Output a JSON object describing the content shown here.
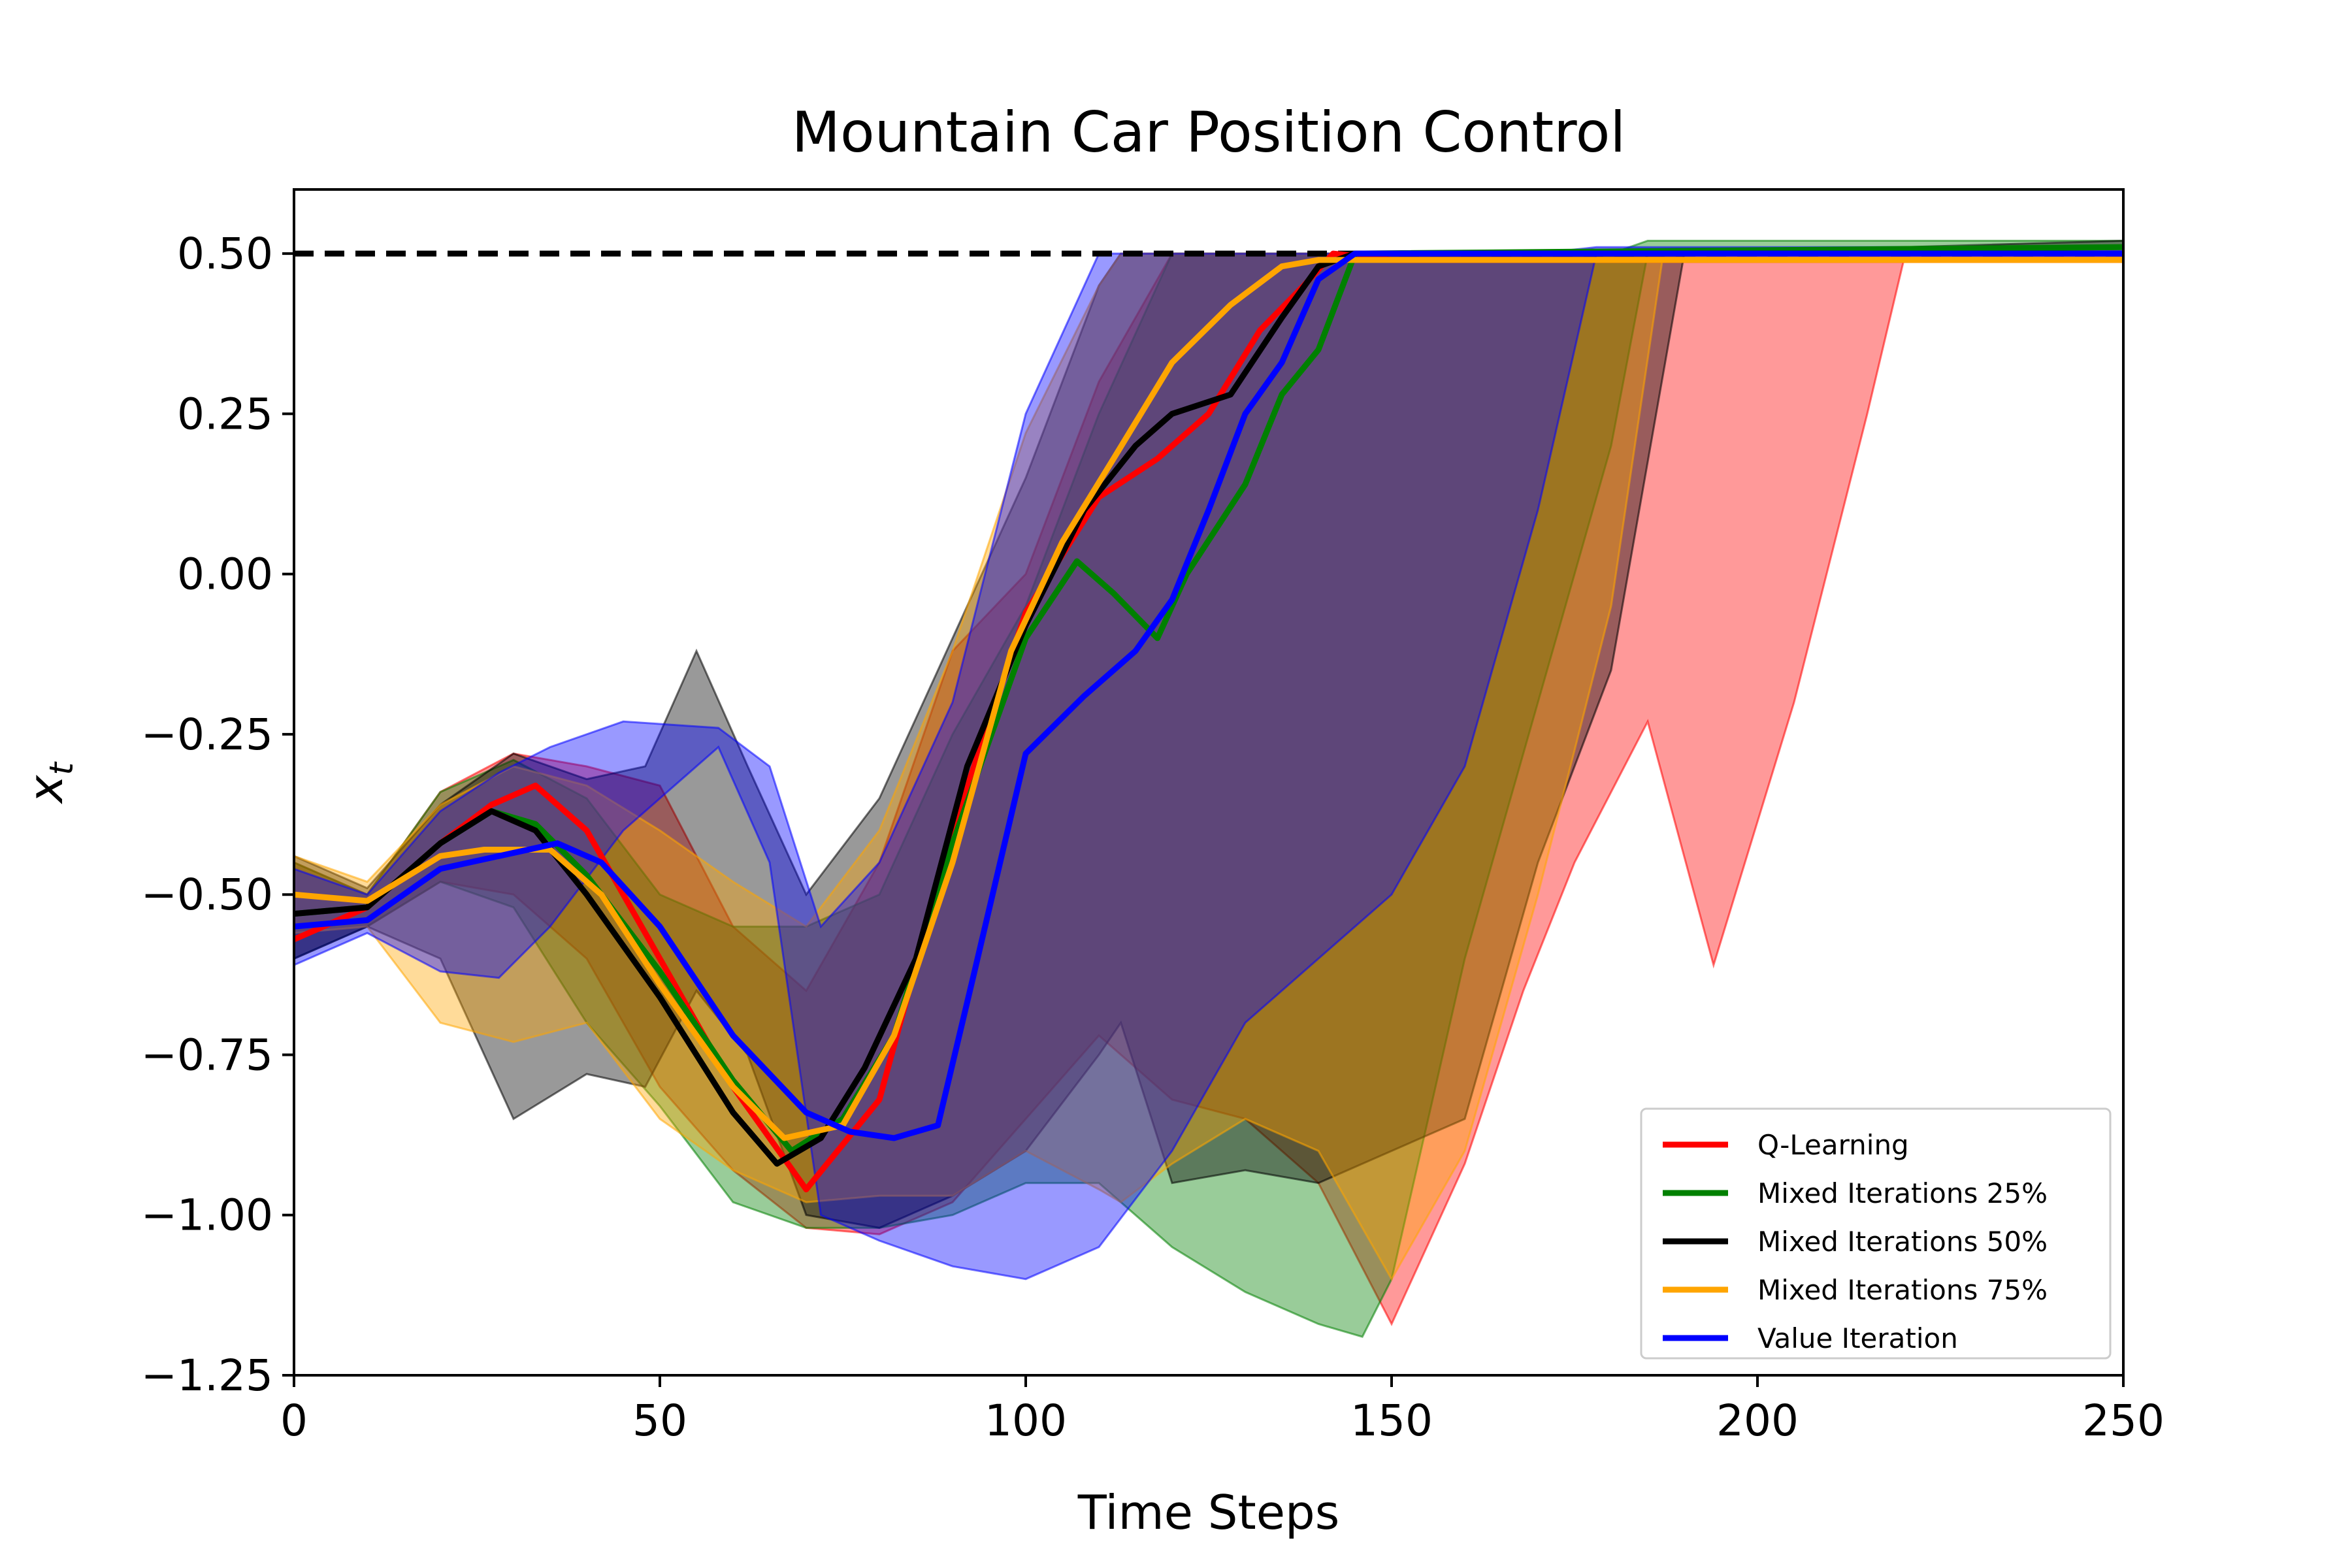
{
  "chart_data": {
    "type": "line",
    "title": "Mountain Car Position Control",
    "xlabel": "Time Steps",
    "ylabel": "x_t",
    "xlim": [
      0,
      250
    ],
    "ylim": [
      -1.25,
      0.6
    ],
    "x_ticks": [
      0,
      50,
      100,
      150,
      200,
      250
    ],
    "x_tick_labels": [
      "0",
      "50",
      "100",
      "150",
      "200",
      "250"
    ],
    "y_ticks": [
      -1.25,
      -1.0,
      -0.75,
      -0.5,
      -0.25,
      0.0,
      0.25,
      0.5
    ],
    "y_tick_labels": [
      "−1.25",
      "−1.00",
      "−0.75",
      "−0.50",
      "−0.25",
      "0.00",
      "0.25",
      "0.50"
    ],
    "goal_line": 0.5,
    "grid": false,
    "legend_placement": "lower-right",
    "series": [
      {
        "name": "Q-Learning",
        "color": "#ff0000",
        "mean": [
          [
            0,
            -0.57
          ],
          [
            10,
            -0.52
          ],
          [
            20,
            -0.42
          ],
          [
            27,
            -0.36
          ],
          [
            33,
            -0.33
          ],
          [
            40,
            -0.4
          ],
          [
            50,
            -0.6
          ],
          [
            60,
            -0.8
          ],
          [
            70,
            -0.96
          ],
          [
            80,
            -0.82
          ],
          [
            90,
            -0.4
          ],
          [
            100,
            -0.06
          ],
          [
            110,
            0.12
          ],
          [
            118,
            0.18
          ],
          [
            125,
            0.25
          ],
          [
            132,
            0.38
          ],
          [
            138,
            0.45
          ],
          [
            142,
            0.5
          ],
          [
            150,
            0.49
          ],
          [
            250,
            0.49
          ]
        ],
        "band": [
          [
            0,
            -0.6,
            -0.45
          ],
          [
            10,
            -0.55,
            -0.5
          ],
          [
            20,
            -0.48,
            -0.34
          ],
          [
            30,
            -0.5,
            -0.28
          ],
          [
            40,
            -0.6,
            -0.3
          ],
          [
            50,
            -0.8,
            -0.33
          ],
          [
            60,
            -0.93,
            -0.55
          ],
          [
            70,
            -1.02,
            -0.65
          ],
          [
            80,
            -1.03,
            -0.45
          ],
          [
            90,
            -0.98,
            -0.12
          ],
          [
            100,
            -0.85,
            0.0
          ],
          [
            110,
            -0.72,
            0.3
          ],
          [
            120,
            -0.82,
            0.5
          ],
          [
            130,
            -0.85,
            0.5
          ],
          [
            140,
            -0.95,
            0.5
          ],
          [
            150,
            -1.17,
            0.5
          ],
          [
            160,
            -0.92,
            0.5
          ],
          [
            168,
            -0.65,
            0.5
          ],
          [
            175,
            -0.45,
            0.5
          ],
          [
            185,
            -0.23,
            0.5
          ],
          [
            194,
            -0.61,
            0.5
          ],
          [
            205,
            -0.2,
            0.5
          ],
          [
            215,
            0.25,
            0.5
          ],
          [
            220,
            0.49,
            0.5
          ],
          [
            250,
            0.49,
            0.5
          ]
        ]
      },
      {
        "name": "Mixed Iterations 25%",
        "color": "#008000",
        "mean": [
          [
            0,
            -0.53
          ],
          [
            10,
            -0.52
          ],
          [
            20,
            -0.42
          ],
          [
            27,
            -0.37
          ],
          [
            33,
            -0.39
          ],
          [
            40,
            -0.47
          ],
          [
            50,
            -0.62
          ],
          [
            60,
            -0.79
          ],
          [
            68,
            -0.9
          ],
          [
            75,
            -0.85
          ],
          [
            82,
            -0.72
          ],
          [
            90,
            -0.42
          ],
          [
            100,
            -0.1
          ],
          [
            107,
            0.02
          ],
          [
            112,
            -0.03
          ],
          [
            118,
            -0.1
          ],
          [
            122,
            0.0
          ],
          [
            130,
            0.14
          ],
          [
            135,
            0.28
          ],
          [
            140,
            0.35
          ],
          [
            145,
            0.5
          ],
          [
            250,
            0.51
          ]
        ],
        "band": [
          [
            0,
            -0.6,
            -0.45
          ],
          [
            10,
            -0.55,
            -0.5
          ],
          [
            20,
            -0.48,
            -0.34
          ],
          [
            30,
            -0.52,
            -0.29
          ],
          [
            40,
            -0.7,
            -0.35
          ],
          [
            50,
            -0.83,
            -0.5
          ],
          [
            60,
            -0.98,
            -0.55
          ],
          [
            70,
            -1.02,
            -0.55
          ],
          [
            80,
            -1.02,
            -0.5
          ],
          [
            90,
            -1.0,
            -0.25
          ],
          [
            100,
            -0.95,
            -0.05
          ],
          [
            110,
            -0.95,
            0.25
          ],
          [
            120,
            -1.05,
            0.5
          ],
          [
            130,
            -1.12,
            0.5
          ],
          [
            140,
            -1.17,
            0.5
          ],
          [
            146,
            -1.19,
            0.5
          ],
          [
            150,
            -1.1,
            0.5
          ],
          [
            160,
            -0.6,
            0.5
          ],
          [
            170,
            -0.2,
            0.5
          ],
          [
            180,
            0.2,
            0.5
          ],
          [
            185,
            0.5,
            0.52
          ],
          [
            250,
            0.51,
            0.52
          ]
        ]
      },
      {
        "name": "Mixed Iterations 50%",
        "color": "#000000",
        "mean": [
          [
            0,
            -0.53
          ],
          [
            10,
            -0.52
          ],
          [
            20,
            -0.42
          ],
          [
            27,
            -0.37
          ],
          [
            33,
            -0.4
          ],
          [
            40,
            -0.5
          ],
          [
            50,
            -0.66
          ],
          [
            60,
            -0.84
          ],
          [
            66,
            -0.92
          ],
          [
            72,
            -0.88
          ],
          [
            78,
            -0.77
          ],
          [
            85,
            -0.6
          ],
          [
            92,
            -0.3
          ],
          [
            100,
            -0.08
          ],
          [
            108,
            0.1
          ],
          [
            115,
            0.2
          ],
          [
            120,
            0.25
          ],
          [
            128,
            0.28
          ],
          [
            135,
            0.4
          ],
          [
            140,
            0.48
          ],
          [
            145,
            0.5
          ],
          [
            250,
            0.5
          ]
        ],
        "band": [
          [
            0,
            -0.6,
            -0.44
          ],
          [
            10,
            -0.55,
            -0.49
          ],
          [
            20,
            -0.6,
            -0.36
          ],
          [
            30,
            -0.85,
            -0.28
          ],
          [
            40,
            -0.78,
            -0.32
          ],
          [
            48,
            -0.8,
            -0.3
          ],
          [
            55,
            -0.65,
            -0.12
          ],
          [
            62,
            -0.75,
            -0.3
          ],
          [
            70,
            -1.0,
            -0.5
          ],
          [
            80,
            -1.02,
            -0.35
          ],
          [
            90,
            -0.97,
            -0.1
          ],
          [
            100,
            -0.9,
            0.15
          ],
          [
            110,
            -0.75,
            0.45
          ],
          [
            113,
            -0.7,
            0.5
          ],
          [
            120,
            -0.95,
            0.5
          ],
          [
            130,
            -0.93,
            0.5
          ],
          [
            140,
            -0.95,
            0.5
          ],
          [
            150,
            -0.9,
            0.5
          ],
          [
            160,
            -0.85,
            0.5
          ],
          [
            170,
            -0.45,
            0.5
          ],
          [
            180,
            -0.15,
            0.5
          ],
          [
            190,
            0.5,
            0.5
          ],
          [
            250,
            0.5,
            0.52
          ]
        ]
      },
      {
        "name": "Mixed Iterations 75%",
        "color": "#ffa500",
        "mean": [
          [
            0,
            -0.5
          ],
          [
            10,
            -0.51
          ],
          [
            20,
            -0.44
          ],
          [
            26,
            -0.43
          ],
          [
            35,
            -0.43
          ],
          [
            42,
            -0.5
          ],
          [
            50,
            -0.64
          ],
          [
            60,
            -0.8
          ],
          [
            67,
            -0.88
          ],
          [
            75,
            -0.86
          ],
          [
            82,
            -0.72
          ],
          [
            90,
            -0.45
          ],
          [
            98,
            -0.12
          ],
          [
            105,
            0.05
          ],
          [
            112,
            0.18
          ],
          [
            120,
            0.33
          ],
          [
            128,
            0.42
          ],
          [
            135,
            0.48
          ],
          [
            140,
            0.49
          ],
          [
            250,
            0.49
          ]
        ],
        "band": [
          [
            0,
            -0.56,
            -0.44
          ],
          [
            10,
            -0.55,
            -0.48
          ],
          [
            20,
            -0.7,
            -0.36
          ],
          [
            30,
            -0.73,
            -0.3
          ],
          [
            40,
            -0.7,
            -0.33
          ],
          [
            50,
            -0.85,
            -0.4
          ],
          [
            60,
            -0.93,
            -0.48
          ],
          [
            70,
            -0.98,
            -0.55
          ],
          [
            80,
            -0.97,
            -0.4
          ],
          [
            90,
            -0.97,
            -0.12
          ],
          [
            100,
            -0.9,
            0.22
          ],
          [
            110,
            -0.96,
            0.45
          ],
          [
            113,
            -0.98,
            0.5
          ],
          [
            120,
            -0.92,
            0.5
          ],
          [
            130,
            -0.85,
            0.5
          ],
          [
            140,
            -0.9,
            0.5
          ],
          [
            150,
            -1.1,
            0.5
          ],
          [
            160,
            -0.9,
            0.5
          ],
          [
            170,
            -0.5,
            0.5
          ],
          [
            180,
            -0.05,
            0.5
          ],
          [
            187,
            0.49,
            0.5
          ],
          [
            250,
            0.49,
            0.5
          ]
        ]
      },
      {
        "name": "Value Iteration",
        "color": "#0000ff",
        "mean": [
          [
            0,
            -0.55
          ],
          [
            10,
            -0.54
          ],
          [
            20,
            -0.46
          ],
          [
            28,
            -0.44
          ],
          [
            36,
            -0.42
          ],
          [
            42,
            -0.45
          ],
          [
            50,
            -0.55
          ],
          [
            60,
            -0.72
          ],
          [
            70,
            -0.84
          ],
          [
            76,
            -0.87
          ],
          [
            82,
            -0.88
          ],
          [
            88,
            -0.86
          ],
          [
            93,
            -0.62
          ],
          [
            100,
            -0.28
          ],
          [
            108,
            -0.19
          ],
          [
            115,
            -0.12
          ],
          [
            120,
            -0.04
          ],
          [
            125,
            0.1
          ],
          [
            130,
            0.25
          ],
          [
            135,
            0.33
          ],
          [
            140,
            0.46
          ],
          [
            145,
            0.5
          ],
          [
            250,
            0.5
          ]
        ],
        "band": [
          [
            0,
            -0.61,
            -0.46
          ],
          [
            10,
            -0.56,
            -0.5
          ],
          [
            20,
            -0.62,
            -0.37
          ],
          [
            28,
            -0.63,
            -0.31
          ],
          [
            35,
            -0.55,
            -0.27
          ],
          [
            45,
            -0.4,
            -0.23
          ],
          [
            58,
            -0.27,
            -0.24
          ],
          [
            65,
            -0.45,
            -0.3
          ],
          [
            72,
            -1.0,
            -0.55
          ],
          [
            80,
            -1.04,
            -0.45
          ],
          [
            90,
            -1.08,
            -0.2
          ],
          [
            100,
            -1.1,
            0.25
          ],
          [
            110,
            -1.05,
            0.5
          ],
          [
            120,
            -0.9,
            0.5
          ],
          [
            130,
            -0.7,
            0.5
          ],
          [
            140,
            -0.6,
            0.5
          ],
          [
            150,
            -0.5,
            0.5
          ],
          [
            160,
            -0.3,
            0.5
          ],
          [
            170,
            0.1,
            0.5
          ],
          [
            178,
            0.5,
            0.51
          ],
          [
            250,
            0.5,
            0.51
          ]
        ]
      }
    ]
  }
}
